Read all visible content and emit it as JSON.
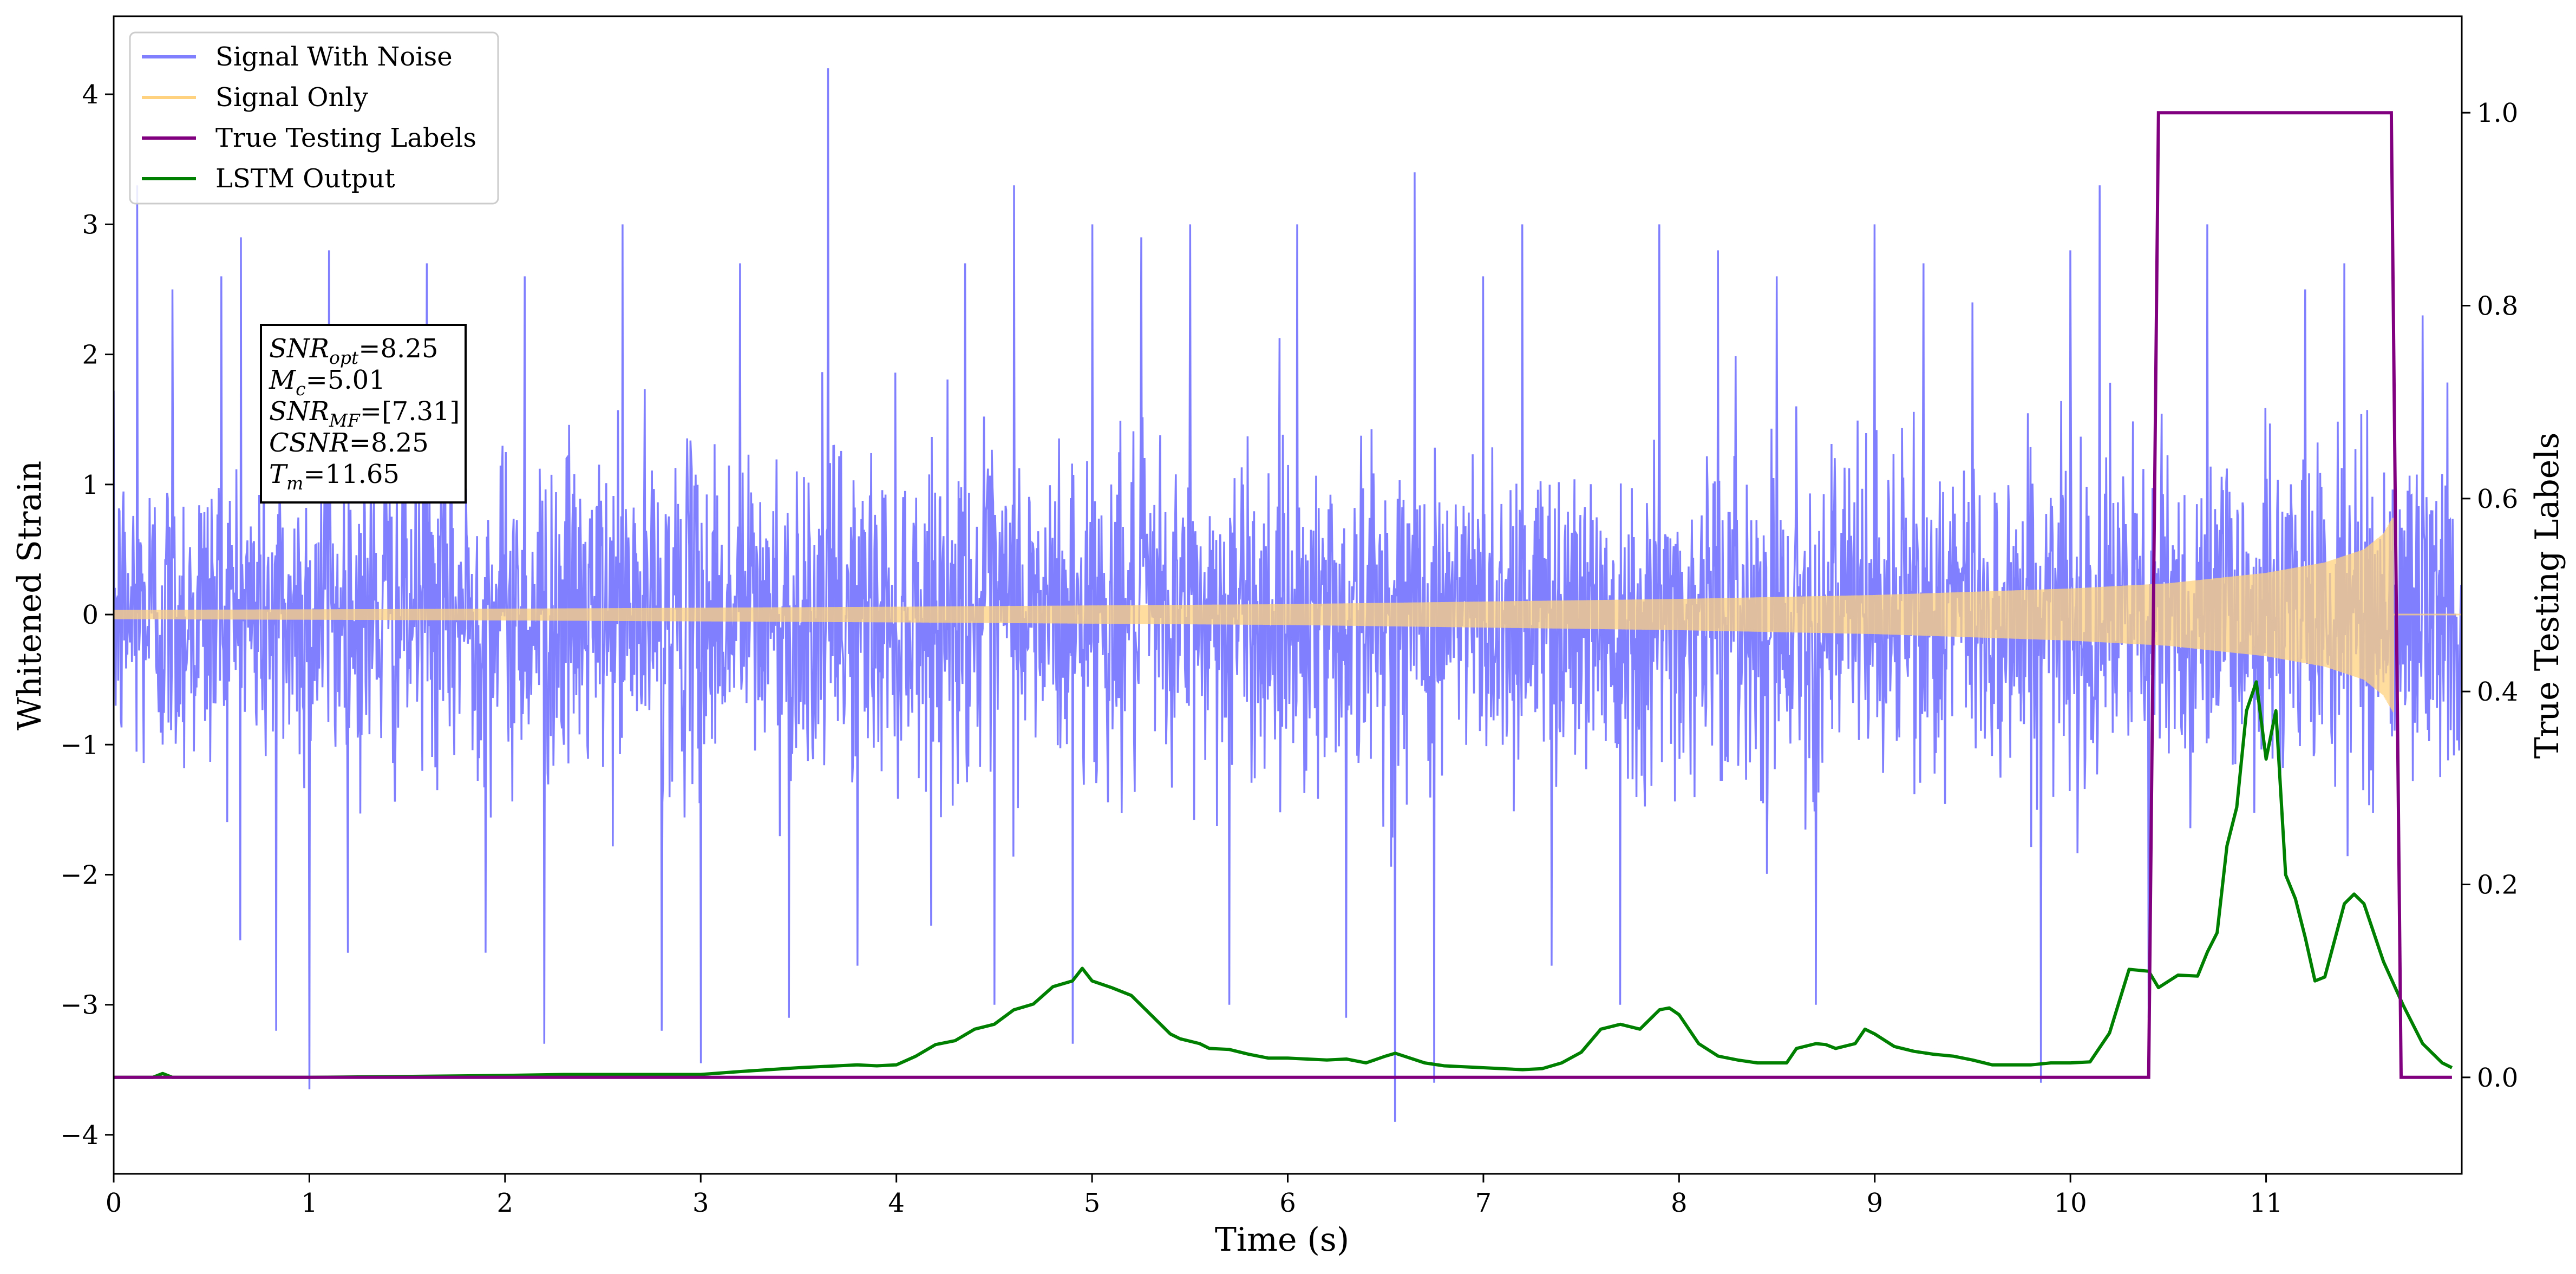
{
  "chart_data": {
    "type": "line",
    "xlabel": "Time (s)",
    "ylabel": "Whitened Strain",
    "ylabel_right": "True Testing Labels",
    "xlim": [
      0,
      12
    ],
    "ylim": [
      -4.3,
      4.6
    ],
    "ylim_right": [
      -0.1,
      1.1
    ],
    "x_ticks": [
      "0",
      "1",
      "2",
      "3",
      "4",
      "5",
      "6",
      "7",
      "8",
      "9",
      "10",
      "11"
    ],
    "y_ticks": [
      "4",
      "3",
      "2",
      "1",
      "0",
      "−1",
      "−2",
      "−3",
      "−4"
    ],
    "y_right_ticks": [
      "1.0",
      "0.8",
      "0.6",
      "0.4",
      "0.2",
      "0.0"
    ],
    "grid": false,
    "legend_position": "top-left",
    "legend": [
      "Signal With Noise",
      "Signal Only",
      "True Testing Labels",
      "LSTM Output"
    ],
    "colors": {
      "signal_with_noise": "#8080ff",
      "signal_only": "#ffd27f",
      "signal_overlap": "#c4998a",
      "true_labels": "#800080",
      "lstm_output": "#008000"
    },
    "annotation": [
      {
        "sym": "SNR",
        "sub": "opt",
        "val": "=8.25"
      },
      {
        "sym": "M",
        "sub": "c",
        "val": "=5.01"
      },
      {
        "sym": "SNR",
        "sub": "MF",
        "val": "=[7.31]"
      },
      {
        "sym": "CSNR",
        "sub": "",
        "val": "=8.25"
      },
      {
        "sym": "T",
        "sub": "m",
        "val": "=11.65"
      }
    ],
    "series": [
      {
        "name": "Signal With Noise",
        "axis": "left",
        "noise_std": 0.62,
        "x_range": [
          0,
          12
        ],
        "peaks": [
          [
            0.12,
            3.3
          ],
          [
            0.3,
            2.5
          ],
          [
            0.55,
            2.6
          ],
          [
            0.65,
            2.9
          ],
          [
            0.83,
            -3.2
          ],
          [
            1.0,
            -3.65
          ],
          [
            1.1,
            2.8
          ],
          [
            1.6,
            2.7
          ],
          [
            1.9,
            -2.6
          ],
          [
            2.1,
            2.6
          ],
          [
            2.2,
            -3.3
          ],
          [
            2.6,
            3.0
          ],
          [
            2.8,
            -3.2
          ],
          [
            3.0,
            -3.45
          ],
          [
            3.2,
            2.7
          ],
          [
            3.45,
            -3.1
          ],
          [
            3.65,
            4.2
          ],
          [
            3.8,
            -2.7
          ],
          [
            4.35,
            2.7
          ],
          [
            4.5,
            -3.0
          ],
          [
            4.6,
            3.3
          ],
          [
            4.9,
            -3.3
          ],
          [
            5.0,
            3.0
          ],
          [
            5.25,
            2.9
          ],
          [
            5.5,
            3.0
          ],
          [
            5.7,
            -3.0
          ],
          [
            6.05,
            3.0
          ],
          [
            6.3,
            -3.1
          ],
          [
            6.55,
            -3.9
          ],
          [
            6.65,
            3.4
          ],
          [
            6.75,
            -3.6
          ],
          [
            7.0,
            2.6
          ],
          [
            7.2,
            3.0
          ],
          [
            7.35,
            -2.7
          ],
          [
            7.7,
            -3.0
          ],
          [
            7.9,
            3.0
          ],
          [
            8.2,
            2.8
          ],
          [
            8.5,
            2.6
          ],
          [
            8.7,
            -3.0
          ],
          [
            9.0,
            3.0
          ],
          [
            9.25,
            2.7
          ],
          [
            9.5,
            2.4
          ],
          [
            9.85,
            -3.6
          ],
          [
            10.0,
            2.8
          ],
          [
            10.15,
            3.3
          ],
          [
            10.4,
            -3.1
          ],
          [
            10.7,
            3.0
          ],
          [
            11.2,
            2.5
          ],
          [
            11.4,
            2.7
          ],
          [
            11.8,
            2.3
          ]
        ]
      },
      {
        "name": "Signal Only",
        "axis": "left",
        "envelope": [
          [
            0,
            0.035
          ],
          [
            2,
            0.045
          ],
          [
            4,
            0.06
          ],
          [
            6,
            0.08
          ],
          [
            8,
            0.12
          ],
          [
            9,
            0.15
          ],
          [
            10,
            0.2
          ],
          [
            10.5,
            0.24
          ],
          [
            11,
            0.32
          ],
          [
            11.3,
            0.4
          ],
          [
            11.5,
            0.5
          ],
          [
            11.6,
            0.62
          ],
          [
            11.65,
            0.75
          ]
        ],
        "end_time": 11.65
      },
      {
        "name": "True Testing Labels",
        "axis": "right",
        "x": [
          0,
          10.4,
          10.45,
          11.64,
          11.69,
          11.95
        ],
        "y": [
          0,
          0,
          1,
          1,
          0,
          0
        ]
      },
      {
        "name": "LSTM Output",
        "axis": "right",
        "x": [
          0,
          0.2,
          0.25,
          0.3,
          0.4,
          0.6,
          1.0,
          1.5,
          2.0,
          2.3,
          2.5,
          3.0,
          3.2,
          3.5,
          3.8,
          3.9,
          4.0,
          4.1,
          4.2,
          4.3,
          4.4,
          4.5,
          4.6,
          4.7,
          4.8,
          4.9,
          4.95,
          5.0,
          5.1,
          5.2,
          5.3,
          5.4,
          5.45,
          5.55,
          5.6,
          5.7,
          5.8,
          5.9,
          6.0,
          6.1,
          6.2,
          6.3,
          6.4,
          6.5,
          6.55,
          6.7,
          6.8,
          7.0,
          7.2,
          7.3,
          7.4,
          7.5,
          7.6,
          7.7,
          7.8,
          7.9,
          7.95,
          8.0,
          8.1,
          8.2,
          8.3,
          8.4,
          8.5,
          8.55,
          8.6,
          8.7,
          8.75,
          8.8,
          8.9,
          8.95,
          9.0,
          9.1,
          9.2,
          9.3,
          9.4,
          9.5,
          9.6,
          9.8,
          9.9,
          10.0,
          10.1,
          10.2,
          10.3,
          10.4,
          10.45,
          10.55,
          10.65,
          10.7,
          10.75,
          10.8,
          10.85,
          10.9,
          10.95,
          11.0,
          11.05,
          11.1,
          11.15,
          11.2,
          11.25,
          11.3,
          11.4,
          11.45,
          11.5,
          11.6,
          11.7,
          11.8,
          11.9,
          11.95
        ],
        "y": [
          0,
          0,
          0.004,
          0,
          0,
          0,
          0,
          0.001,
          0.002,
          0.003,
          0.003,
          0.003,
          0.006,
          0.01,
          0.013,
          0.012,
          0.013,
          0.022,
          0.034,
          0.038,
          0.05,
          0.055,
          0.07,
          0.076,
          0.094,
          0.1,
          0.113,
          0.1,
          0.093,
          0.085,
          0.065,
          0.045,
          0.04,
          0.035,
          0.03,
          0.029,
          0.024,
          0.02,
          0.02,
          0.019,
          0.018,
          0.019,
          0.015,
          0.022,
          0.025,
          0.015,
          0.012,
          0.01,
          0.008,
          0.009,
          0.015,
          0.026,
          0.05,
          0.055,
          0.05,
          0.07,
          0.072,
          0.065,
          0.035,
          0.022,
          0.018,
          0.015,
          0.015,
          0.015,
          0.03,
          0.035,
          0.034,
          0.03,
          0.035,
          0.05,
          0.045,
          0.032,
          0.027,
          0.024,
          0.022,
          0.018,
          0.013,
          0.013,
          0.015,
          0.015,
          0.016,
          0.046,
          0.112,
          0.11,
          0.093,
          0.106,
          0.105,
          0.13,
          0.15,
          0.24,
          0.28,
          0.38,
          0.41,
          0.33,
          0.38,
          0.21,
          0.185,
          0.145,
          0.1,
          0.104,
          0.18,
          0.19,
          0.18,
          0.12,
          0.075,
          0.035,
          0.015,
          0.01
        ]
      }
    ]
  }
}
